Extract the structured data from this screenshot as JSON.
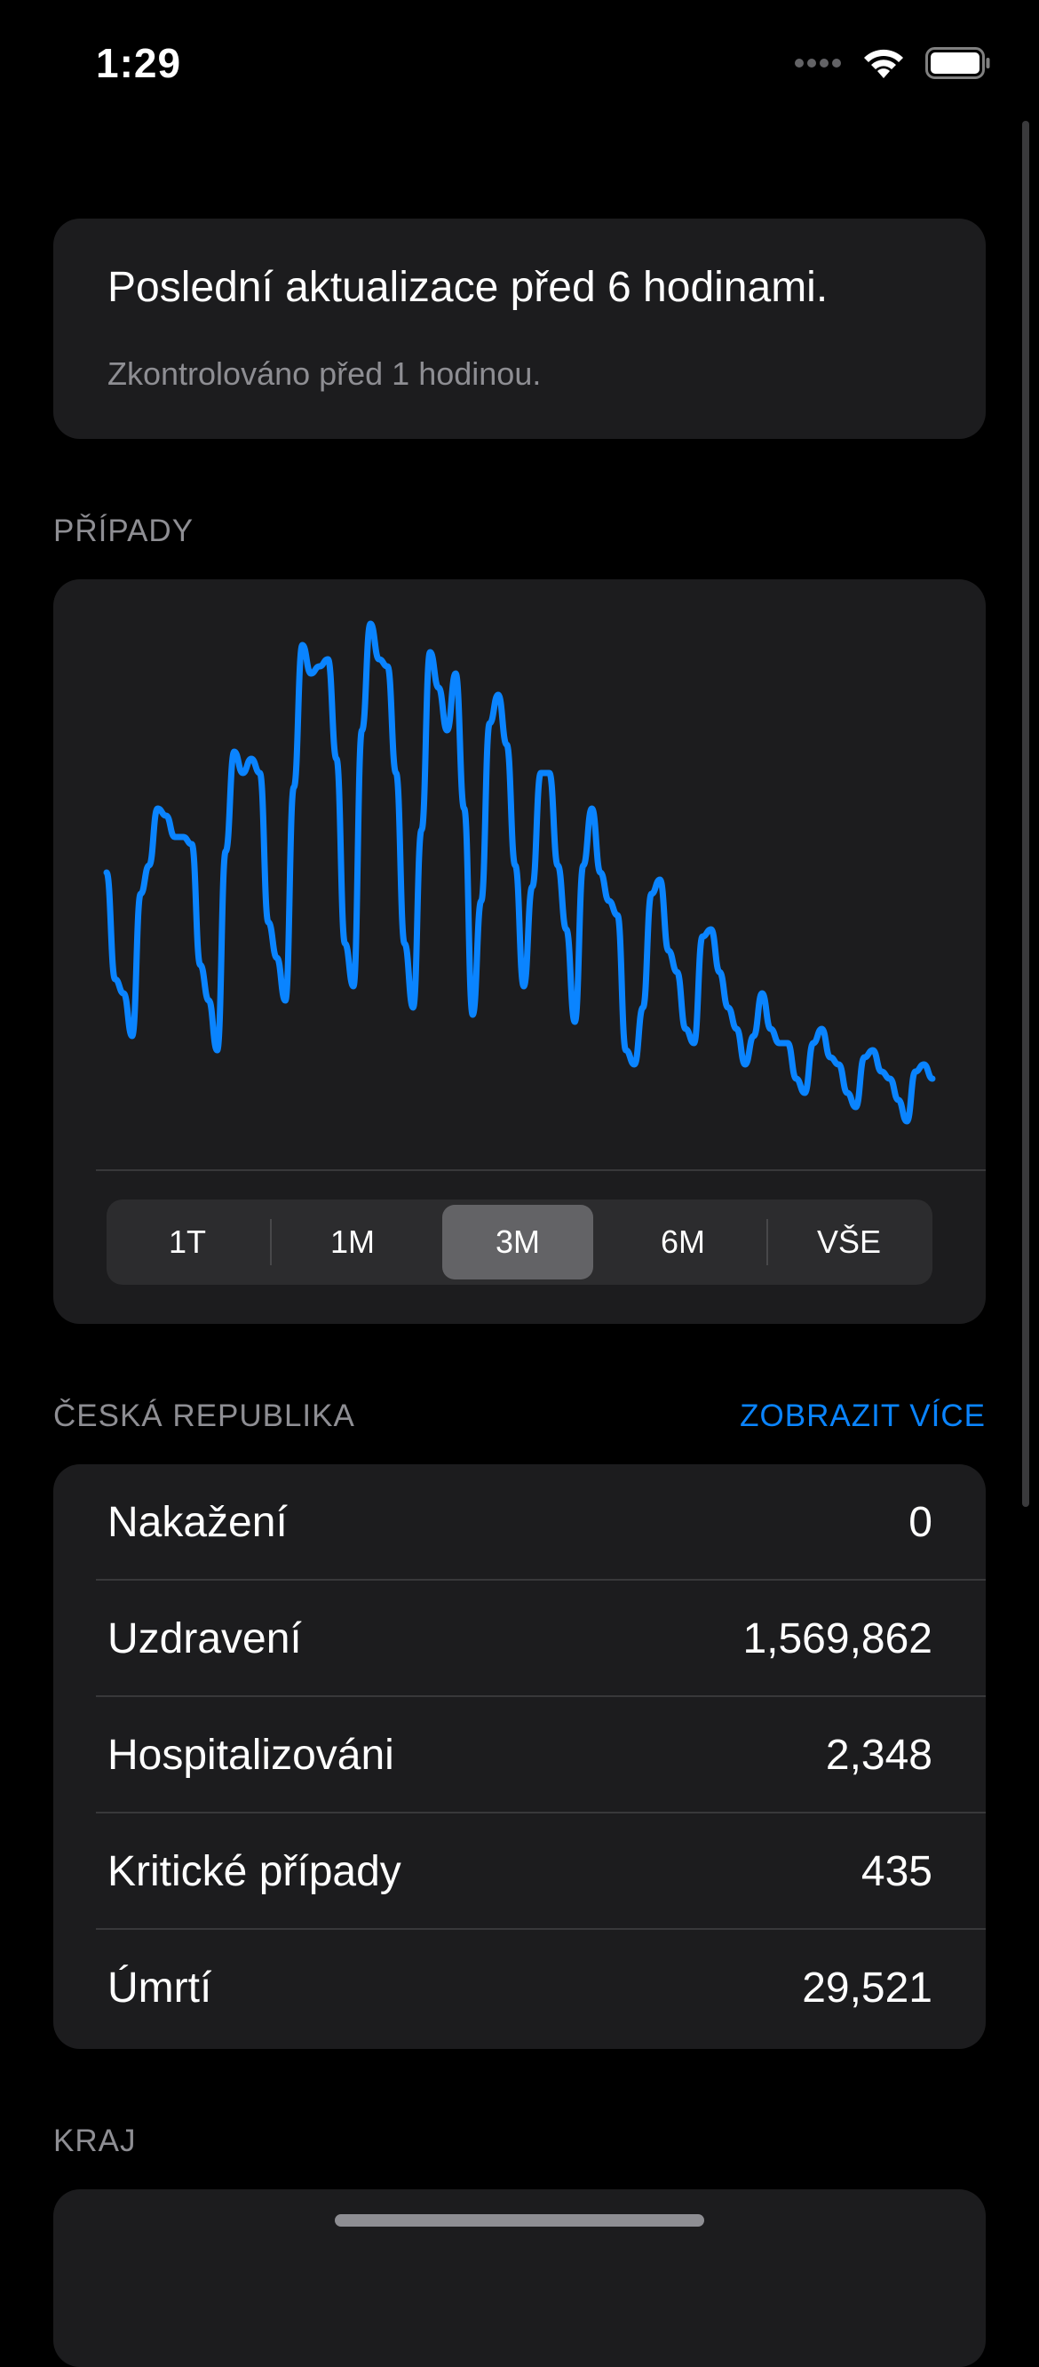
{
  "status_bar": {
    "time": "1:29"
  },
  "update_card": {
    "title": "Poslední aktualizace před 6 hodinami.",
    "subtitle": "Zkontrolováno před 1 hodinou."
  },
  "cases_section": {
    "header": "PŘÍPADY",
    "segments": [
      "1T",
      "1M",
      "3M",
      "6M",
      "VŠE"
    ],
    "selected_segment": "3M"
  },
  "chart_data": {
    "type": "line",
    "color": "#0a84ff",
    "values": [
      48,
      33,
      31,
      25,
      45,
      49,
      57,
      56,
      53,
      53,
      52,
      35,
      30,
      23,
      51,
      65,
      62,
      64,
      62,
      41,
      36,
      30,
      60,
      80,
      76,
      77,
      78,
      64,
      38,
      32,
      68,
      83,
      78,
      77,
      62,
      38,
      29,
      54,
      79,
      74,
      68,
      76,
      57,
      28,
      44,
      69,
      73,
      66,
      49,
      32,
      46,
      62,
      62,
      49,
      40,
      27,
      49,
      57,
      48,
      44,
      42,
      23,
      21,
      29,
      45,
      47,
      37,
      34,
      26,
      24,
      39,
      40,
      34,
      29,
      26,
      21,
      25,
      31,
      26,
      24,
      24,
      19,
      17,
      24,
      26,
      22,
      21,
      17,
      15,
      22,
      23,
      20,
      19,
      16,
      13,
      20,
      21,
      19
    ]
  },
  "country_section": {
    "header": "ČESKÁ REPUBLIKA",
    "link": "ZOBRAZIT VÍCE",
    "rows": [
      {
        "label": "Nakažení",
        "value": "0"
      },
      {
        "label": "Uzdravení",
        "value": "1,569,862"
      },
      {
        "label": "Hospitalizováni",
        "value": "2,348"
      },
      {
        "label": "Kritické případy",
        "value": "435"
      },
      {
        "label": "Úmrtí",
        "value": "29,521"
      }
    ]
  },
  "region_section": {
    "header": "KRAJ"
  }
}
